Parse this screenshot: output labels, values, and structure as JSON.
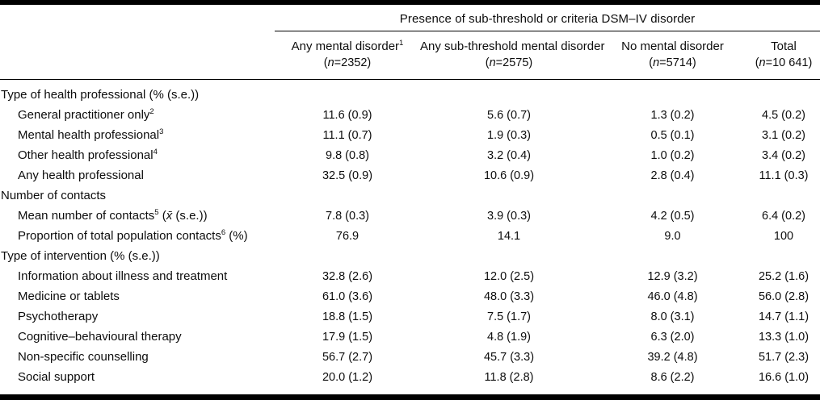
{
  "table": {
    "spanner": "Presence of sub-threshold or criteria DSM–IV disorder",
    "columns": [
      {
        "title": "Any mental disorder^1^",
        "n": "(*n*=2352)"
      },
      {
        "title": "Any sub-threshold mental disorder",
        "n": "(*n*=2575)"
      },
      {
        "title": "No mental disorder",
        "n": "(*n*=5714)"
      },
      {
        "title": "Total",
        "n": "(*n*=10 641)"
      }
    ],
    "rows": [
      {
        "label": "Type of health professional (% (s.e.))"
      },
      {
        "label": "General practitioner only^2^",
        "values": [
          "11.6 (0.9)",
          "5.6 (0.7)",
          "1.3 (0.2)",
          "4.5 (0.2)"
        ]
      },
      {
        "label": "Mental health professional^3^",
        "values": [
          "11.1 (0.7)",
          "1.9 (0.3)",
          "0.5 (0.1)",
          "3.1 (0.2)"
        ]
      },
      {
        "label": "Other health professional^4^",
        "values": [
          "9.8 (0.8)",
          "3.2 (0.4)",
          "1.0 (0.2)",
          "3.4 (0.2)"
        ]
      },
      {
        "label": "Any health professional",
        "values": [
          "32.5 (0.9)",
          "10.6 (0.9)",
          "2.8 (0.4)",
          "11.1 (0.3)"
        ]
      },
      {
        "label": "Number of contacts"
      },
      {
        "label": "Mean number of contacts^5^ (*x̄* (s.e.))",
        "values": [
          "7.8 (0.3)",
          "3.9 (0.3)",
          "4.2 (0.5)",
          "6.4 (0.2)"
        ]
      },
      {
        "label": "Proportion of total population contacts^6^ (%)",
        "values": [
          "76.9",
          "14.1",
          "9.0",
          "100"
        ]
      },
      {
        "label": "Type of intervention (% (s.e.))"
      },
      {
        "label": "Information about illness and treatment",
        "values": [
          "32.8 (2.6)",
          "12.0 (2.5)",
          "12.9 (3.2)",
          "25.2 (1.6)"
        ]
      },
      {
        "label": "Medicine or tablets",
        "values": [
          "61.0 (3.6)",
          "48.0 (3.3)",
          "46.0 (4.8)",
          "56.0 (2.8)"
        ]
      },
      {
        "label": "Psychotherapy",
        "values": [
          "18.8 (1.5)",
          "7.5 (1.7)",
          "8.0 (3.1)",
          "14.7 (1.1)"
        ]
      },
      {
        "label": "Cognitive–behavioural therapy",
        "values": [
          "17.9 (1.5)",
          "4.8 (1.9)",
          "6.3 (2.0)",
          "13.3 (1.0)"
        ]
      },
      {
        "label": "Non-specific counselling",
        "values": [
          "56.7 (2.7)",
          "45.7 (3.3)",
          "39.2 (4.8)",
          "51.7 (2.3)"
        ]
      },
      {
        "label": "Social support",
        "values": [
          "20.0 (1.2)",
          "11.8 (2.8)",
          "8.6 (2.2)",
          "16.6 (1.0)"
        ]
      }
    ]
  }
}
